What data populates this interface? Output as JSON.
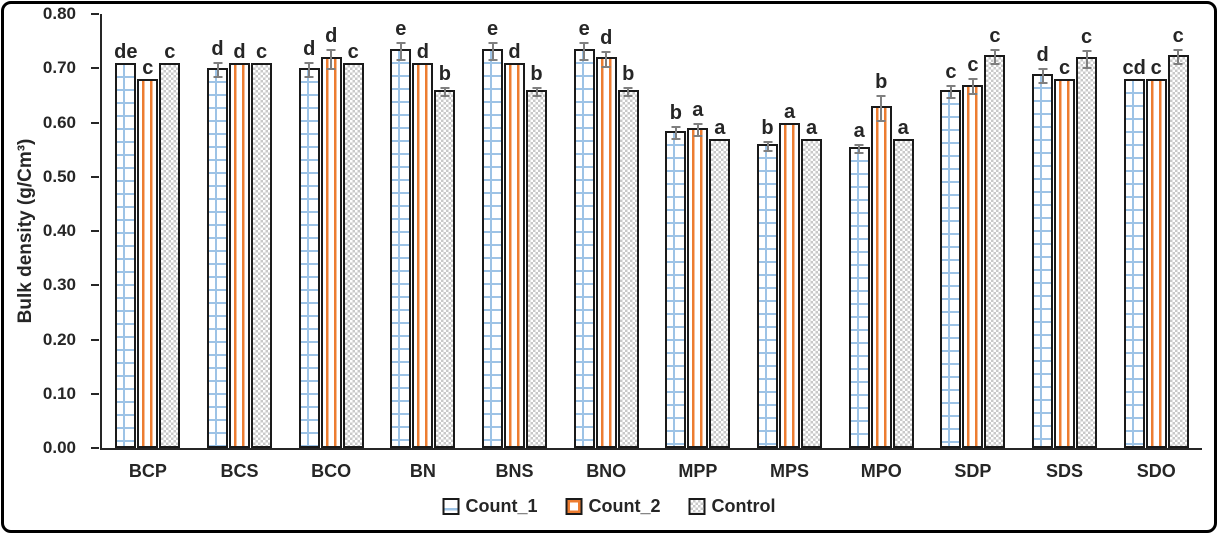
{
  "figure": {
    "background": "#ffffff",
    "border_color": "#000000"
  },
  "chart_data": {
    "type": "bar",
    "title": "",
    "xlabel": "",
    "ylabel": "Bulk density (g/Cm³)",
    "ylim": [
      0,
      0.8
    ],
    "yticks": [
      "0.00",
      "0.10",
      "0.20",
      "0.30",
      "0.40",
      "0.50",
      "0.60",
      "0.70",
      "0.80"
    ],
    "grid": false,
    "legend_position": "bottom-center",
    "error_bar_color": "#7F7F7F",
    "categories": [
      "BCP",
      "BCS",
      "BCO",
      "BN",
      "BNS",
      "BNO",
      "MPP",
      "MPS",
      "MPO",
      "SDP",
      "SDS",
      "SDO"
    ],
    "series": [
      {
        "name": "Count_1",
        "pattern": "blue-ladder",
        "color": "#9DC3E6",
        "values": [
          0.71,
          0.7,
          0.7,
          0.735,
          0.735,
          0.735,
          0.585,
          0.56,
          0.555,
          0.66,
          0.69,
          0.68
        ],
        "errors": [
          0,
          0.015,
          0.015,
          0.018,
          0.018,
          0.018,
          0.013,
          0.01,
          0.01,
          0.013,
          0.015,
          0
        ],
        "letters": [
          "de",
          "d",
          "d",
          "e",
          "e",
          "e",
          "b",
          "b",
          "a",
          "c",
          "d",
          "cd"
        ]
      },
      {
        "name": "Count_2",
        "pattern": "orange-vlines",
        "color": "#ED7D31",
        "values": [
          0.68,
          0.71,
          0.72,
          0.71,
          0.71,
          0.72,
          0.59,
          0.6,
          0.63,
          0.67,
          0.68,
          0.68
        ],
        "errors": [
          0,
          0,
          0.02,
          0,
          0,
          0.015,
          0.013,
          0,
          0.025,
          0.015,
          0,
          0
        ],
        "letters": [
          "c",
          "d",
          "d",
          "d",
          "d",
          "d",
          "a",
          "a",
          "b",
          "c",
          "c",
          "c"
        ]
      },
      {
        "name": "Control",
        "pattern": "gray-checker",
        "color": "#C9C9C9",
        "values": [
          0.71,
          0.71,
          0.71,
          0.66,
          0.66,
          0.66,
          0.57,
          0.57,
          0.57,
          0.725,
          0.72,
          0.725
        ],
        "errors": [
          0,
          0,
          0,
          0.01,
          0.01,
          0.01,
          0,
          0,
          0,
          0.015,
          0.017,
          0.015
        ],
        "letters": [
          "c",
          "c",
          "c",
          "b",
          "b",
          "b",
          "a",
          "a",
          "a",
          "c",
          "c",
          "c"
        ]
      }
    ]
  }
}
